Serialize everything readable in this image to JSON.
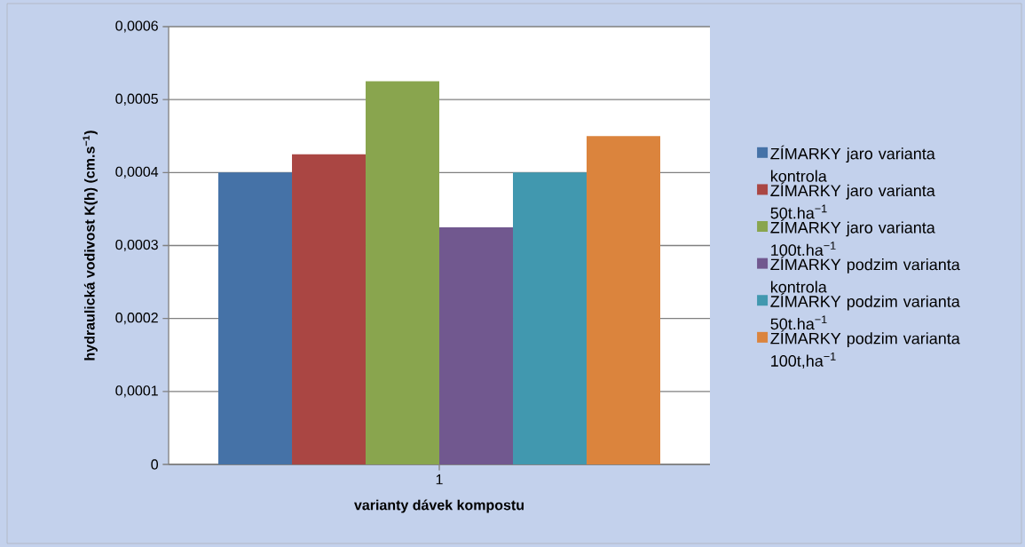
{
  "chart_data": {
    "type": "bar",
    "xlabel": "varianty dávek kompostu",
    "ylabel": "hydraulická vodivost K(h) (cm.s$^{−1}$)",
    "categories": [
      "1"
    ],
    "series": [
      {
        "name": "ZÍMARKY jaro varianta kontrola",
        "color": "#4572a7",
        "values": [
          0.0004
        ]
      },
      {
        "name": "ZÍMARKY jaro varianta 50t.ha$^{−1}$",
        "color": "#aa4643",
        "values": [
          0.000425
        ]
      },
      {
        "name": "ZÍMARKY jaro varianta 100t.ha$^{−1}$",
        "color": "#89a54e",
        "values": [
          0.000525
        ]
      },
      {
        "name": "ZÍMARKY podzim varianta kontrola",
        "color": "#71588f",
        "values": [
          0.000325
        ]
      },
      {
        "name": "ZÍMARKY podzim varianta 50t.ha$^{−1}$",
        "color": "#4198af",
        "values": [
          0.0004
        ]
      },
      {
        "name": "ZÍMARKY podzim varianta 100t,ha$^{−1}$",
        "color": "#db843d",
        "values": [
          0.00045
        ]
      }
    ],
    "ylim": [
      0,
      0.0006
    ],
    "yticks": [
      0,
      {
        "value": 0.0001,
        "label": "0,0001"
      },
      {
        "value": 0.0002,
        "label": "0,0002"
      },
      {
        "value": 0.0003,
        "label": "0,0003"
      },
      {
        "value": 0.0004,
        "label": "0,0004"
      },
      {
        "value": 0.0005,
        "label": "0,0005"
      },
      {
        "value": 0.0006,
        "label": "0,0006"
      }
    ],
    "grid": "y",
    "legend": "right"
  }
}
